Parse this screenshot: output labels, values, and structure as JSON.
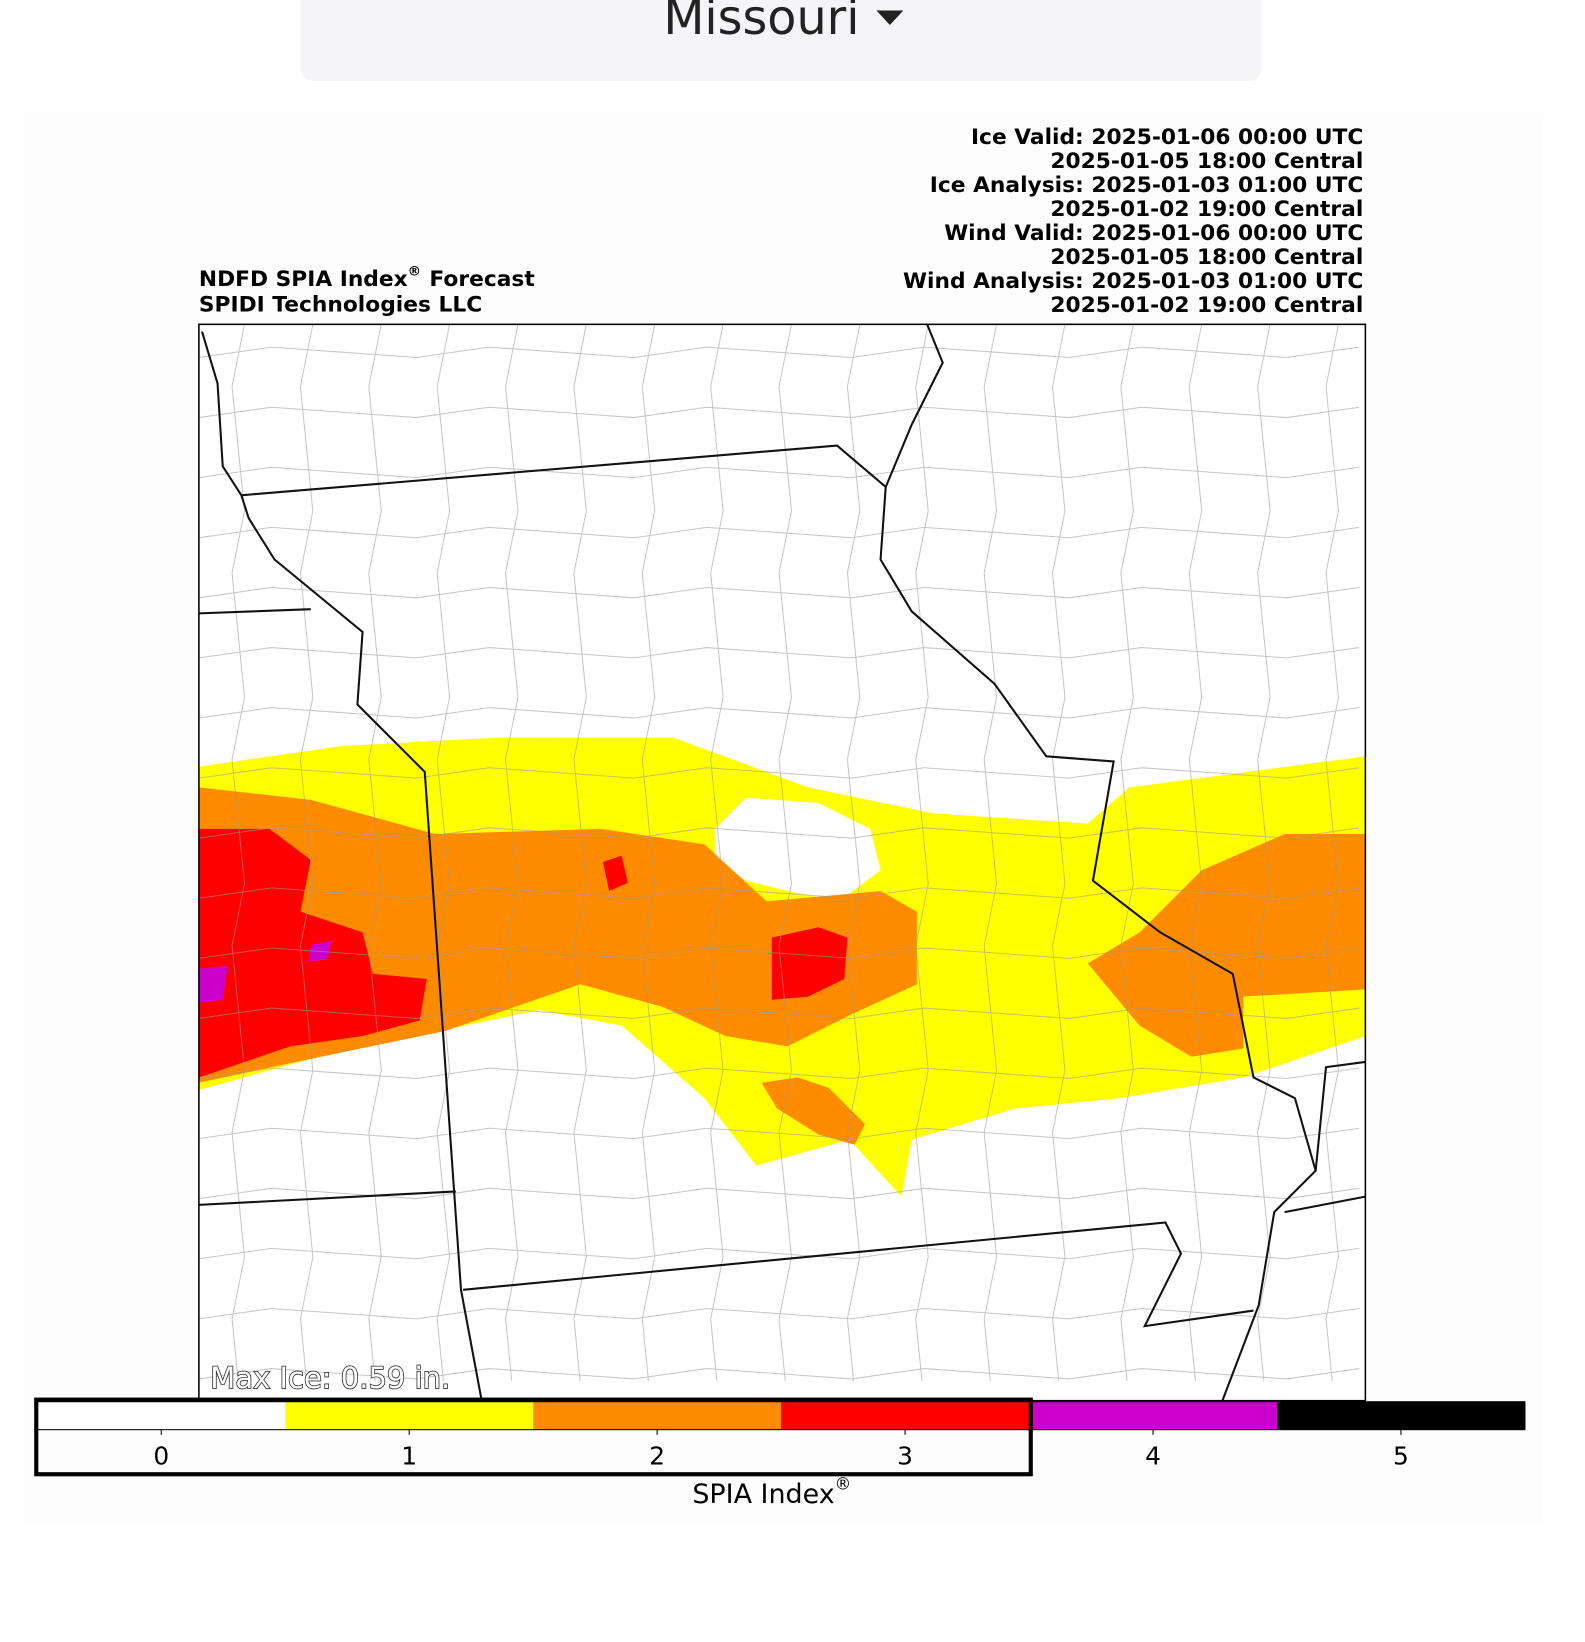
{
  "dropdown": {
    "label": "Missouri"
  },
  "header": {
    "title": "NDFD SPIA Index",
    "title_mark": "®",
    "title_suffix": "Forecast",
    "subtitle": "SPIDI Technologies LLC",
    "valid_times": [
      "Ice Valid: 2025-01-06 00:00 UTC",
      "2025-01-05 18:00 Central",
      "Ice Analysis: 2025-01-03 01:00 UTC",
      "2025-01-02 19:00 Central",
      "Wind Valid: 2025-01-06 00:00 UTC",
      "2025-01-05 18:00 Central",
      "Wind Analysis: 2025-01-03 01:00 UTC",
      "2025-01-02 19:00 Central"
    ]
  },
  "annotation": "Max Ice: 0.59 in.",
  "colorbar": {
    "label": "SPIA Index",
    "label_mark": "®",
    "ticks": [
      0,
      1,
      2,
      3,
      4,
      5
    ],
    "colors": [
      "#ffffff",
      "#ffff00",
      "#ff8c00",
      "#ff0000",
      "#cc00cc",
      "#000000"
    ]
  }
}
